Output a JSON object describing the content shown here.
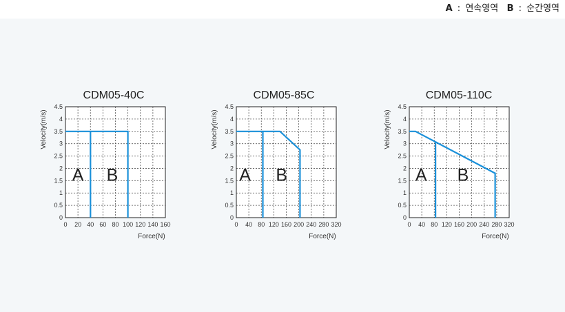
{
  "legend": {
    "items": [
      {
        "key": "A",
        "text": "연속영역"
      },
      {
        "key": "B",
        "text": "순간영역"
      }
    ]
  },
  "chart_data": [
    {
      "type": "line",
      "title": "CDM05-40C",
      "xlabel": "Force(N)",
      "ylabel": "Velocity(m/s)",
      "xlim": [
        0,
        160
      ],
      "ylim": [
        0,
        4.5
      ],
      "xticks": [
        "0",
        "20",
        "40",
        "60",
        "80",
        "100",
        "120",
        "140",
        "160"
      ],
      "yticks": [
        "0",
        "0.5",
        "1",
        "1.5",
        "2",
        "2.5",
        "3",
        "3.5",
        "4",
        "4.5"
      ],
      "grid": true,
      "color": "#1a90d9",
      "series": [
        {
          "x": [
            0,
            100,
            100
          ],
          "y": [
            3.5,
            3.5,
            0
          ]
        },
        {
          "x": [
            40,
            40
          ],
          "y": [
            3.5,
            0
          ]
        }
      ],
      "region_labels": [
        {
          "text": "A",
          "x": 20,
          "y": 1.75
        },
        {
          "text": "B",
          "x": 75,
          "y": 1.75
        }
      ]
    },
    {
      "type": "line",
      "title": "CDM05-85C",
      "xlabel": "Force(N)",
      "ylabel": "Velocity(m/s)",
      "xlim": [
        0,
        320
      ],
      "ylim": [
        0,
        4.5
      ],
      "xticks": [
        "0",
        "40",
        "80",
        "120",
        "160",
        "200",
        "240",
        "280",
        "320"
      ],
      "yticks": [
        "0",
        "0.5",
        "1",
        "1.5",
        "2",
        "2.5",
        "3",
        "3.5",
        "4",
        "4.5"
      ],
      "grid": true,
      "color": "#1a90d9",
      "series": [
        {
          "x": [
            0,
            140,
            204,
            204
          ],
          "y": [
            3.5,
            3.5,
            2.75,
            0
          ]
        },
        {
          "x": [
            85,
            85
          ],
          "y": [
            3.5,
            0
          ]
        }
      ],
      "region_labels": [
        {
          "text": "A",
          "x": 28,
          "y": 1.75
        },
        {
          "text": "B",
          "x": 145,
          "y": 1.75
        }
      ]
    },
    {
      "type": "line",
      "title": "CDM05-110C",
      "xlabel": "Force(N)",
      "ylabel": "Velocity(m/s)",
      "xlim": [
        0,
        320
      ],
      "ylim": [
        0,
        4.5
      ],
      "xticks": [
        "0",
        "40",
        "80",
        "120",
        "160",
        "200",
        "240",
        "280",
        "320"
      ],
      "yticks": [
        "0",
        "0.5",
        "1",
        "1.5",
        "2",
        "2.5",
        "3",
        "3.5",
        "4",
        "4.5"
      ],
      "grid": true,
      "color": "#1a90d9",
      "series": [
        {
          "x": [
            0,
            20,
            275,
            275
          ],
          "y": [
            3.5,
            3.5,
            1.8,
            0
          ]
        },
        {
          "x": [
            84,
            84
          ],
          "y": [
            3.05,
            0
          ]
        }
      ],
      "region_labels": [
        {
          "text": "A",
          "x": 38,
          "y": 1.75
        },
        {
          "text": "B",
          "x": 172,
          "y": 1.75
        }
      ]
    }
  ]
}
